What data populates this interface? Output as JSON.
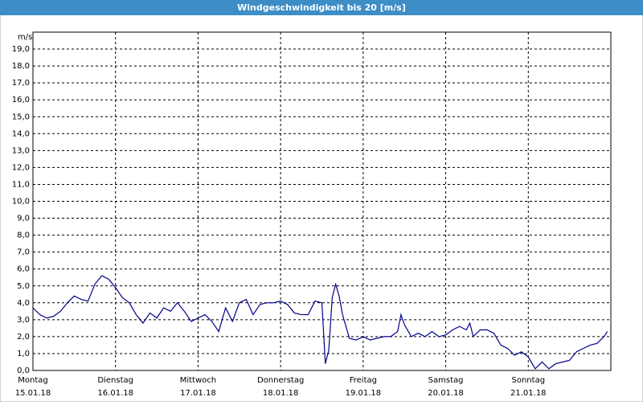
{
  "chart_data": {
    "type": "line",
    "title": "Windgeschwindigkeit bis 20 [m/s]",
    "y_unit": "m/s",
    "xlim": [
      0,
      168
    ],
    "ylim": [
      0,
      20
    ],
    "xticks": [
      {
        "value": 0,
        "label": "Montag"
      },
      {
        "value": 24,
        "label": "Dienstag"
      },
      {
        "value": 48,
        "label": "Mittwoch"
      },
      {
        "value": 72,
        "label": "Donnerstag"
      },
      {
        "value": 96,
        "label": "Freitag"
      },
      {
        "value": 120,
        "label": "Samstag"
      },
      {
        "value": 144,
        "label": "Sonntag"
      }
    ],
    "xtick_dates": [
      "15.01.18",
      "16.01.18",
      "17.01.18",
      "18.01.18",
      "19.01.18",
      "20.01.18",
      "21.01.18"
    ],
    "yticks": [
      {
        "value": 0,
        "label": "0,0"
      },
      {
        "value": 1,
        "label": "1,0"
      },
      {
        "value": 2,
        "label": "2,0"
      },
      {
        "value": 3,
        "label": "3,0"
      },
      {
        "value": 4,
        "label": "4,0"
      },
      {
        "value": 5,
        "label": "5,0"
      },
      {
        "value": 6,
        "label": "6,0"
      },
      {
        "value": 7,
        "label": "7,0"
      },
      {
        "value": 8,
        "label": "8,0"
      },
      {
        "value": 9,
        "label": "9,0"
      },
      {
        "value": 10,
        "label": "10,0"
      },
      {
        "value": 11,
        "label": "11,0"
      },
      {
        "value": 12,
        "label": "12,0"
      },
      {
        "value": 13,
        "label": "13,0"
      },
      {
        "value": 14,
        "label": "14,0"
      },
      {
        "value": 15,
        "label": "15,0"
      },
      {
        "value": 16,
        "label": "16,0"
      },
      {
        "value": 17,
        "label": "17,0"
      },
      {
        "value": 18,
        "label": "18,0"
      },
      {
        "value": 19,
        "label": "19,0"
      }
    ],
    "grid": true,
    "color": "#00008b",
    "x": [
      0,
      2,
      4,
      6,
      8,
      10,
      12,
      14,
      16,
      18,
      20,
      22,
      24,
      26,
      28,
      30,
      32,
      34,
      36,
      38,
      40,
      42,
      44,
      46,
      48,
      50,
      52,
      54,
      56,
      58,
      60,
      62,
      64,
      66,
      68,
      70,
      72,
      74,
      76,
      78,
      80,
      82,
      84,
      85,
      86,
      87,
      88,
      89,
      90,
      92,
      94,
      96,
      98,
      100,
      102,
      104,
      106,
      107,
      108,
      110,
      112,
      114,
      116,
      118,
      120,
      122,
      124,
      126,
      127,
      128,
      130,
      132,
      134,
      136,
      138,
      140,
      142,
      144,
      146,
      148,
      150,
      152,
      154,
      156,
      158,
      160,
      162,
      164,
      166,
      167
    ],
    "values": [
      3.7,
      3.3,
      3.1,
      3.2,
      3.5,
      4.0,
      4.4,
      4.2,
      4.1,
      5.1,
      5.6,
      5.4,
      4.9,
      4.3,
      4.0,
      3.3,
      2.8,
      3.4,
      3.1,
      3.7,
      3.5,
      4.0,
      3.5,
      2.9,
      3.1,
      3.3,
      2.9,
      2.3,
      3.7,
      2.9,
      4.0,
      4.2,
      3.3,
      3.9,
      4.0,
      4.0,
      4.1,
      3.9,
      3.4,
      3.3,
      3.3,
      4.1,
      4.0,
      0.4,
      1.2,
      4.3,
      5.1,
      4.4,
      3.3,
      1.9,
      1.8,
      2.0,
      1.8,
      1.9,
      2.0,
      2.0,
      2.3,
      3.3,
      2.7,
      2.0,
      2.2,
      2.0,
      2.3,
      2.0,
      2.1,
      2.4,
      2.6,
      2.4,
      2.8,
      2.0,
      2.4,
      2.4,
      2.2,
      1.5,
      1.3,
      0.9,
      1.1,
      0.8,
      0.1,
      0.5,
      0.1,
      0.4,
      0.5,
      0.6,
      1.1,
      1.3,
      1.5,
      1.6,
      2.0,
      2.3
    ]
  }
}
